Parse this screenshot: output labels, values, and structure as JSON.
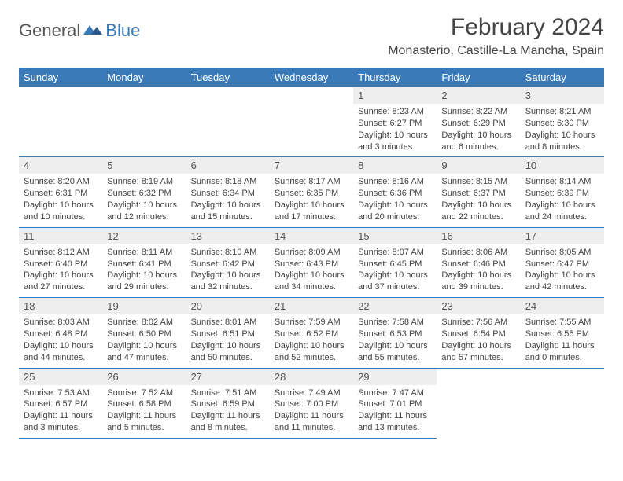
{
  "brand": {
    "text1": "General",
    "text2": "Blue"
  },
  "title": "February 2024",
  "location": "Monasterio, Castille-La Mancha, Spain",
  "colors": {
    "header_bg": "#3a7ab8",
    "header_fg": "#ffffff",
    "daynum_bg": "#eeeeee",
    "border": "#3a7ab8",
    "text": "#444444"
  },
  "weekdays": [
    "Sunday",
    "Monday",
    "Tuesday",
    "Wednesday",
    "Thursday",
    "Friday",
    "Saturday"
  ],
  "weeks": [
    [
      null,
      null,
      null,
      null,
      {
        "d": "1",
        "sr": "8:23 AM",
        "ss": "6:27 PM",
        "dl": "10 hours and 3 minutes."
      },
      {
        "d": "2",
        "sr": "8:22 AM",
        "ss": "6:29 PM",
        "dl": "10 hours and 6 minutes."
      },
      {
        "d": "3",
        "sr": "8:21 AM",
        "ss": "6:30 PM",
        "dl": "10 hours and 8 minutes."
      }
    ],
    [
      {
        "d": "4",
        "sr": "8:20 AM",
        "ss": "6:31 PM",
        "dl": "10 hours and 10 minutes."
      },
      {
        "d": "5",
        "sr": "8:19 AM",
        "ss": "6:32 PM",
        "dl": "10 hours and 12 minutes."
      },
      {
        "d": "6",
        "sr": "8:18 AM",
        "ss": "6:34 PM",
        "dl": "10 hours and 15 minutes."
      },
      {
        "d": "7",
        "sr": "8:17 AM",
        "ss": "6:35 PM",
        "dl": "10 hours and 17 minutes."
      },
      {
        "d": "8",
        "sr": "8:16 AM",
        "ss": "6:36 PM",
        "dl": "10 hours and 20 minutes."
      },
      {
        "d": "9",
        "sr": "8:15 AM",
        "ss": "6:37 PM",
        "dl": "10 hours and 22 minutes."
      },
      {
        "d": "10",
        "sr": "8:14 AM",
        "ss": "6:39 PM",
        "dl": "10 hours and 24 minutes."
      }
    ],
    [
      {
        "d": "11",
        "sr": "8:12 AM",
        "ss": "6:40 PM",
        "dl": "10 hours and 27 minutes."
      },
      {
        "d": "12",
        "sr": "8:11 AM",
        "ss": "6:41 PM",
        "dl": "10 hours and 29 minutes."
      },
      {
        "d": "13",
        "sr": "8:10 AM",
        "ss": "6:42 PM",
        "dl": "10 hours and 32 minutes."
      },
      {
        "d": "14",
        "sr": "8:09 AM",
        "ss": "6:43 PM",
        "dl": "10 hours and 34 minutes."
      },
      {
        "d": "15",
        "sr": "8:07 AM",
        "ss": "6:45 PM",
        "dl": "10 hours and 37 minutes."
      },
      {
        "d": "16",
        "sr": "8:06 AM",
        "ss": "6:46 PM",
        "dl": "10 hours and 39 minutes."
      },
      {
        "d": "17",
        "sr": "8:05 AM",
        "ss": "6:47 PM",
        "dl": "10 hours and 42 minutes."
      }
    ],
    [
      {
        "d": "18",
        "sr": "8:03 AM",
        "ss": "6:48 PM",
        "dl": "10 hours and 44 minutes."
      },
      {
        "d": "19",
        "sr": "8:02 AM",
        "ss": "6:50 PM",
        "dl": "10 hours and 47 minutes."
      },
      {
        "d": "20",
        "sr": "8:01 AM",
        "ss": "6:51 PM",
        "dl": "10 hours and 50 minutes."
      },
      {
        "d": "21",
        "sr": "7:59 AM",
        "ss": "6:52 PM",
        "dl": "10 hours and 52 minutes."
      },
      {
        "d": "22",
        "sr": "7:58 AM",
        "ss": "6:53 PM",
        "dl": "10 hours and 55 minutes."
      },
      {
        "d": "23",
        "sr": "7:56 AM",
        "ss": "6:54 PM",
        "dl": "10 hours and 57 minutes."
      },
      {
        "d": "24",
        "sr": "7:55 AM",
        "ss": "6:55 PM",
        "dl": "11 hours and 0 minutes."
      }
    ],
    [
      {
        "d": "25",
        "sr": "7:53 AM",
        "ss": "6:57 PM",
        "dl": "11 hours and 3 minutes."
      },
      {
        "d": "26",
        "sr": "7:52 AM",
        "ss": "6:58 PM",
        "dl": "11 hours and 5 minutes."
      },
      {
        "d": "27",
        "sr": "7:51 AM",
        "ss": "6:59 PM",
        "dl": "11 hours and 8 minutes."
      },
      {
        "d": "28",
        "sr": "7:49 AM",
        "ss": "7:00 PM",
        "dl": "11 hours and 11 minutes."
      },
      {
        "d": "29",
        "sr": "7:47 AM",
        "ss": "7:01 PM",
        "dl": "11 hours and 13 minutes."
      },
      null,
      null
    ]
  ],
  "labels": {
    "sunrise": "Sunrise:",
    "sunset": "Sunset:",
    "daylight": "Daylight:"
  }
}
